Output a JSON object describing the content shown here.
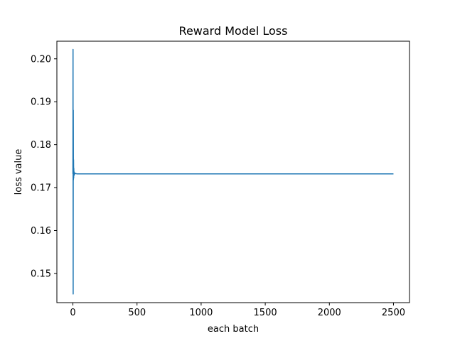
{
  "chart_data": {
    "type": "line",
    "title": "Reward Model Loss",
    "xlabel": "each batch",
    "ylabel": "loss value",
    "xlim": [
      -125,
      2625
    ],
    "ylim": [
      0.1432,
      0.2041
    ],
    "xticks": [
      0,
      500,
      1000,
      1500,
      2000,
      2500
    ],
    "yticks": [
      0.15,
      0.16,
      0.17,
      0.18,
      0.19,
      0.2
    ],
    "xtick_labels": [
      "0",
      "500",
      "1000",
      "1500",
      "2000",
      "2500"
    ],
    "ytick_labels": [
      "0.15",
      "0.16",
      "0.17",
      "0.18",
      "0.19",
      "0.20"
    ],
    "grid": false,
    "legend": false,
    "series": [
      {
        "color": "#1f77b4",
        "x": [
          0,
          1,
          2,
          3,
          4,
          5,
          6,
          7,
          8,
          9,
          10,
          11,
          12,
          14,
          16,
          20,
          30,
          50,
          100,
          500,
          1000,
          1500,
          2000,
          2500
        ],
        "y": [
          0.1732,
          0.2022,
          0.1452,
          0.188,
          0.1718,
          0.1765,
          0.1722,
          0.1745,
          0.1728,
          0.1737,
          0.1729,
          0.1735,
          0.1731,
          0.1734,
          0.1732,
          0.1733,
          0.1732,
          0.1732,
          0.1732,
          0.1732,
          0.1732,
          0.1732,
          0.1732,
          0.1732
        ]
      }
    ]
  }
}
